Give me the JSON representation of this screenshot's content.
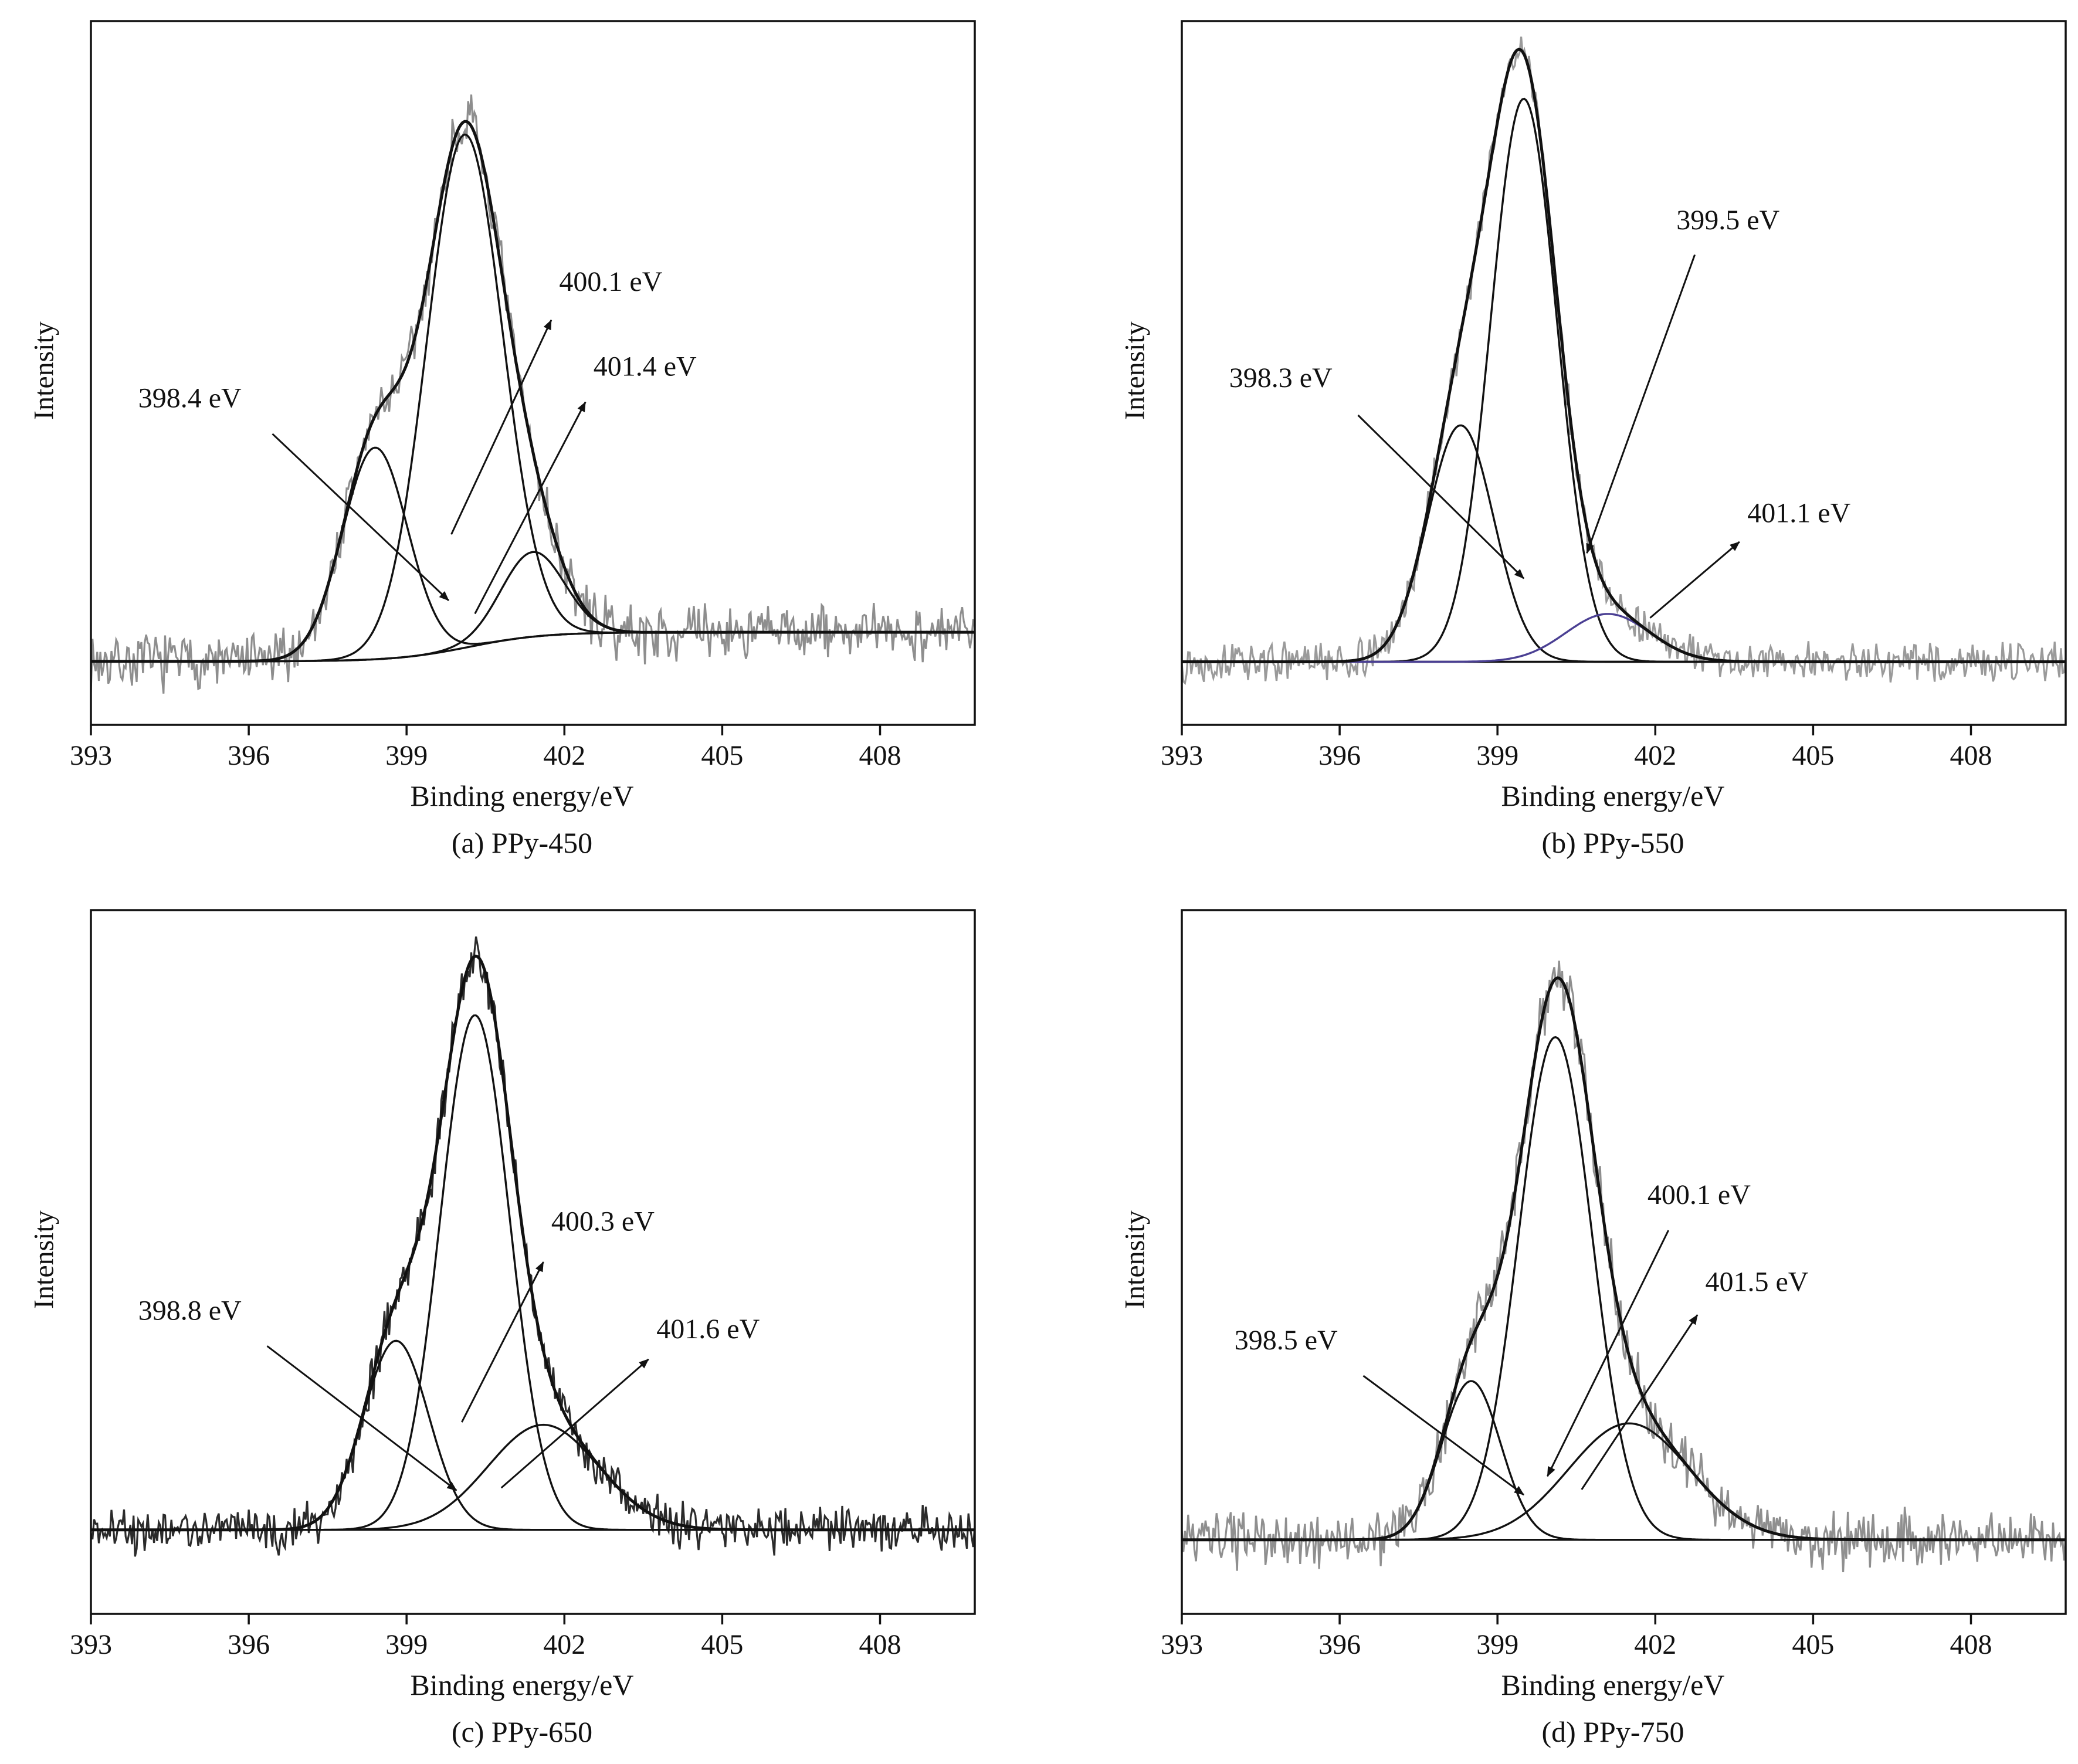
{
  "chart_data": [
    {
      "type": "line",
      "title": "(a) PPy-450",
      "xlabel": "Binding energy/eV",
      "ylabel": "Intensity",
      "xlim": [
        393,
        409.8
      ],
      "ylim": [
        -0.12,
        1.21
      ],
      "xticks": [
        393,
        396,
        399,
        402,
        405,
        408
      ],
      "grid": false,
      "axis_color": "#111111",
      "raw_color": "#8e8e8e",
      "envelope_color": "#111111",
      "noise_amp": 0.035,
      "seed": 7,
      "baseline": {
        "y0": 0.0,
        "y1": 0.055,
        "center": 400.2,
        "width": 0.7,
        "color": "#111111"
      },
      "peaks": [
        {
          "center": 398.4,
          "height": 0.4,
          "width": 0.62,
          "label": "398.4 eV",
          "color": "#111111"
        },
        {
          "center": 400.1,
          "height": 0.97,
          "width": 0.72,
          "label": "400.1 eV",
          "color": "#111111"
        },
        {
          "center": 401.4,
          "height": 0.16,
          "width": 0.6,
          "label": "401.4 eV",
          "color": "#111111"
        }
      ],
      "annotations": [
        {
          "text": "398.4 eV",
          "x": 393.9,
          "y": 0.48,
          "arrow": [
            396.45,
            0.43,
            399.8,
            0.115
          ]
        },
        {
          "text": "400.1 eV",
          "x": 401.9,
          "y": 0.7,
          "arrow": [
            399.85,
            0.24,
            401.75,
            0.645
          ]
        },
        {
          "text": "401.4 eV",
          "x": 402.55,
          "y": 0.54,
          "arrow": [
            400.3,
            0.09,
            402.4,
            0.49
          ]
        }
      ]
    },
    {
      "type": "line",
      "title": "(b) PPy-550",
      "xlabel": "Binding energy/eV",
      "ylabel": "Intensity",
      "xlim": [
        393,
        409.8
      ],
      "ylim": [
        -0.1,
        1.15
      ],
      "xticks": [
        393,
        396,
        399,
        402,
        405,
        408
      ],
      "grid": false,
      "axis_color": "#111111",
      "raw_color": "#9a9a9a",
      "envelope_color": "#111111",
      "noise_amp": 0.022,
      "seed": 13,
      "baseline": {
        "y0": 0.012,
        "y1": 0.012,
        "center": 400.0,
        "width": 1.0,
        "color": "#111111"
      },
      "peaks": [
        {
          "center": 398.3,
          "height": 0.42,
          "width": 0.63,
          "label": "398.3 eV",
          "color": "#111111"
        },
        {
          "center": 399.5,
          "height": 1.0,
          "width": 0.63,
          "label": "399.5 eV",
          "color": "#111111"
        },
        {
          "center": 401.1,
          "height": 0.085,
          "width": 0.8,
          "label": "401.1 eV",
          "color": "#4a3f93"
        }
      ],
      "annotations": [
        {
          "text": "398.3 eV",
          "x": 393.9,
          "y": 0.5,
          "arrow": [
            396.35,
            0.45,
            399.5,
            0.16
          ]
        },
        {
          "text": "399.5 eV",
          "x": 402.4,
          "y": 0.78,
          "arrow": [
            402.75,
            0.735,
            400.7,
            0.205
          ]
        },
        {
          "text": "401.1 eV",
          "x": 403.75,
          "y": 0.26,
          "arrow": [
            401.9,
            0.09,
            403.6,
            0.225
          ]
        }
      ]
    },
    {
      "type": "line",
      "title": "(c) PPy-650",
      "xlabel": "Binding energy/eV",
      "ylabel": "Intensity",
      "xlim": [
        393,
        409.8
      ],
      "ylim": [
        -0.14,
        1.2
      ],
      "xticks": [
        393,
        396,
        399,
        402,
        405,
        408
      ],
      "grid": false,
      "axis_color": "#111111",
      "raw_color": "#2b2b2b",
      "envelope_color": "#111111",
      "noise_amp": 0.03,
      "seed": 21,
      "baseline": {
        "y0": 0.02,
        "y1": 0.02,
        "center": 400.0,
        "width": 1.0,
        "color": "#111111"
      },
      "peaks": [
        {
          "center": 398.8,
          "height": 0.36,
          "width": 0.62,
          "label": "398.8 eV",
          "color": "#111111"
        },
        {
          "center": 400.3,
          "height": 0.98,
          "width": 0.66,
          "label": "400.3 eV",
          "color": "#111111"
        },
        {
          "center": 401.6,
          "height": 0.2,
          "width": 1.05,
          "label": "401.6 eV",
          "color": "#111111"
        }
      ],
      "annotations": [
        {
          "text": "398.8 eV",
          "x": 393.9,
          "y": 0.42,
          "arrow": [
            396.35,
            0.37,
            399.95,
            0.095
          ]
        },
        {
          "text": "400.3 eV",
          "x": 401.75,
          "y": 0.59,
          "arrow": [
            400.05,
            0.225,
            401.6,
            0.53
          ]
        },
        {
          "text": "401.6 eV",
          "x": 403.75,
          "y": 0.385,
          "arrow": [
            400.8,
            0.1,
            403.6,
            0.345
          ]
        }
      ]
    },
    {
      "type": "line",
      "title": "(d) PPy-750",
      "xlabel": "Binding energy/eV",
      "ylabel": "Intensity",
      "xlim": [
        393,
        409.8
      ],
      "ylim": [
        -0.12,
        1.21
      ],
      "xticks": [
        393,
        396,
        399,
        402,
        405,
        408
      ],
      "grid": false,
      "axis_color": "#111111",
      "raw_color": "#8f8f8f",
      "envelope_color": "#111111",
      "noise_amp": 0.035,
      "seed": 33,
      "baseline": {
        "y0": 0.02,
        "y1": 0.02,
        "center": 400.0,
        "width": 1.0,
        "color": "#111111"
      },
      "peaks": [
        {
          "center": 398.5,
          "height": 0.3,
          "width": 0.56,
          "label": "398.5 eV",
          "color": "#111111"
        },
        {
          "center": 400.1,
          "height": 0.95,
          "width": 0.7,
          "label": "400.1 eV",
          "color": "#111111"
        },
        {
          "center": 401.5,
          "height": 0.22,
          "width": 1.15,
          "label": "401.5 eV",
          "color": "#111111"
        }
      ],
      "annotations": [
        {
          "text": "398.5 eV",
          "x": 394.0,
          "y": 0.38,
          "arrow": [
            396.45,
            0.33,
            399.5,
            0.105
          ]
        },
        {
          "text": "400.1 eV",
          "x": 401.85,
          "y": 0.655,
          "arrow": [
            402.25,
            0.605,
            399.95,
            0.14
          ]
        },
        {
          "text": "401.5 eV",
          "x": 402.95,
          "y": 0.49,
          "arrow": [
            400.6,
            0.115,
            402.8,
            0.445
          ]
        }
      ]
    }
  ]
}
